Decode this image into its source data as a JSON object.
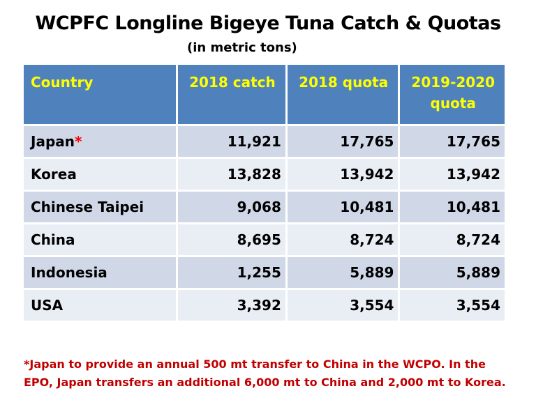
{
  "chart_data": {
    "type": "table",
    "title": "WCPFC Longline Bigeye Tuna Catch & Quotas",
    "subtitle": "(in metric tons)",
    "columns": [
      "Country",
      "2018 catch",
      "2018 quota",
      "2019-2020 quota"
    ],
    "column_header_lines": {
      "country": "Country",
      "catch_2018": "2018 catch",
      "quota_2018": "2018 quota",
      "quota_1920_line1": "2019-2020",
      "quota_1920_line2": "quota"
    },
    "rows": [
      {
        "country": "Japan",
        "mark": "*",
        "catch_2018": "11,921",
        "quota_2018": "17,765",
        "quota_2019_2020": "17,765"
      },
      {
        "country": "Korea",
        "mark": "",
        "catch_2018": "13,828",
        "quota_2018": "13,942",
        "quota_2019_2020": "13,942"
      },
      {
        "country": "Chinese Taipei",
        "mark": "",
        "catch_2018": "9,068",
        "quota_2018": "10,481",
        "quota_2019_2020": "10,481"
      },
      {
        "country": "China",
        "mark": "",
        "catch_2018": "8,695",
        "quota_2018": "8,724",
        "quota_2019_2020": "8,724"
      },
      {
        "country": "Indonesia",
        "mark": "",
        "catch_2018": "1,255",
        "quota_2018": "5,889",
        "quota_2019_2020": "5,889"
      },
      {
        "country": "USA",
        "mark": "",
        "catch_2018": "3,392",
        "quota_2018": "3,554",
        "quota_2019_2020": "3,554"
      }
    ],
    "footnote_line1": "*Japan to provide an annual 500 mt transfer to China in the WCPO. In the",
    "footnote_line2": "EPO, Japan transfers an additional 6,000 mt to China and 2,000 mt to Korea."
  },
  "colors": {
    "header_bg": "#4f81bd",
    "header_text": "#ffff00",
    "row_odd": "#d0d8e8",
    "row_even": "#e9edf4",
    "footnote": "#c00000",
    "asterisk": "#ff0000"
  }
}
